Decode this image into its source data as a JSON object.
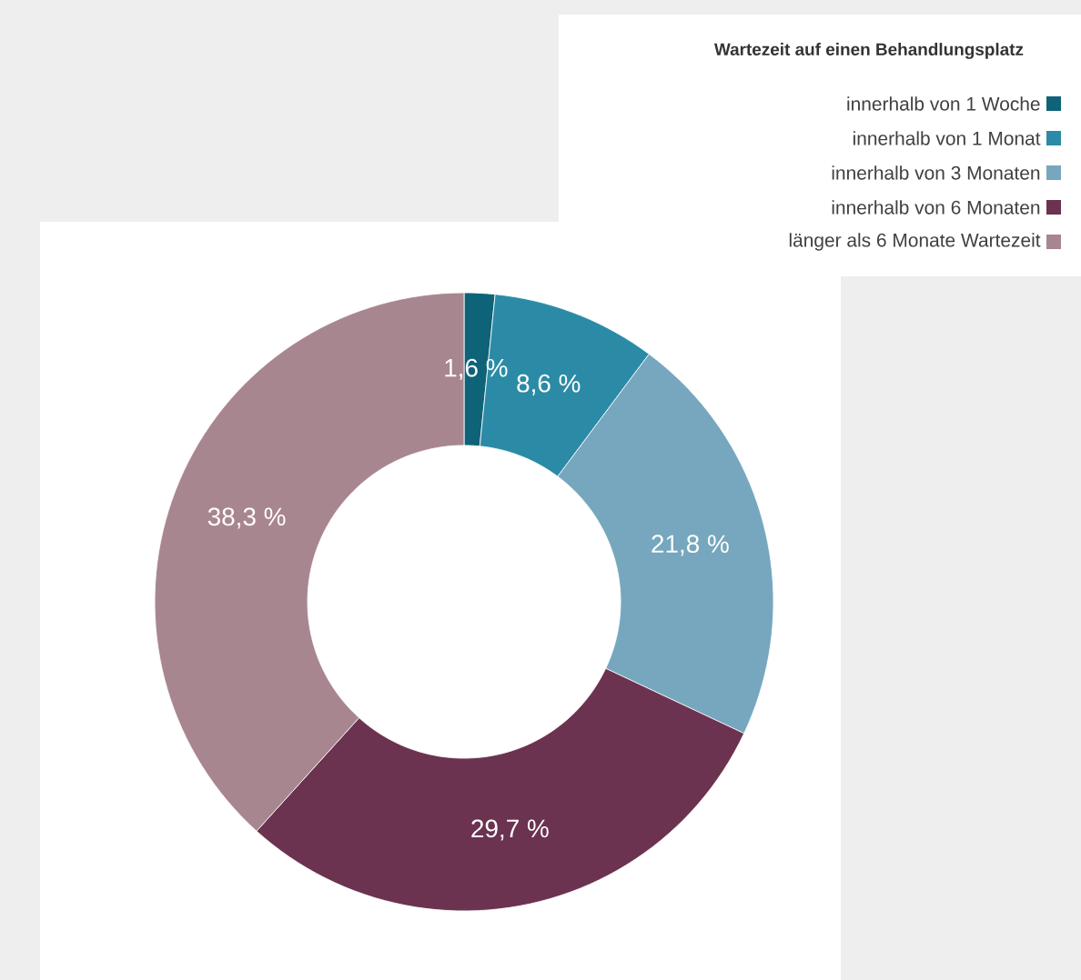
{
  "chart_data": {
    "type": "donut",
    "legend_title": "Wartezeit auf einen Behandlungsplatz",
    "categories": [
      "innerhalb von 1 Woche",
      "innerhalb von 1 Monat",
      "innerhalb von 3 Monaten",
      "innerhalb von 6 Monaten",
      "länger als 6 Monate Wartezeit"
    ],
    "values": [
      1.6,
      8.6,
      21.8,
      29.7,
      38.3
    ],
    "colors": [
      "#0f6378",
      "#2b8ba6",
      "#76a7be",
      "#6b3350",
      "#a88690"
    ],
    "value_labels": [
      "1,6 %",
      "8,6 %",
      "21,8 %",
      "29,7 %",
      "38,3 %"
    ],
    "legend": "top right"
  }
}
